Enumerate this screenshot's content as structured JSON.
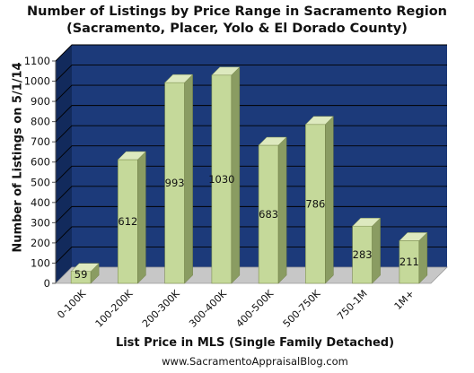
{
  "chart_data": {
    "type": "bar",
    "title": "Number of Listings by Price Range in Sacramento Region",
    "subtitle": "(Sacramento, Placer, Yolo & El Dorado County)",
    "xlabel": "List Price in MLS (Single Family Detached)",
    "ylabel": "Number of Listings on 5/1/14",
    "categories": [
      "0-100K",
      "100-200K",
      "200-300K",
      "300-400K",
      "400-500K",
      "500-750K",
      "750-1M",
      "1M+"
    ],
    "values": [
      59,
      612,
      993,
      1030,
      683,
      786,
      283,
      211
    ],
    "ylim": [
      0,
      1100
    ],
    "yticks": [
      "0",
      "100",
      "200",
      "300",
      "400",
      "500",
      "600",
      "700",
      "800",
      "900",
      "1000",
      "1100"
    ],
    "grid": true,
    "legend": "none",
    "footer": "www.SacramentoAppraisalBlog.com",
    "colors": {
      "background": "#1c3a7a",
      "grid": "#000000",
      "bar_front": "#c5d99a",
      "bar_side": "#8a9c62",
      "bar_top": "#dde9bf",
      "floor": "#c7c7c7"
    }
  }
}
